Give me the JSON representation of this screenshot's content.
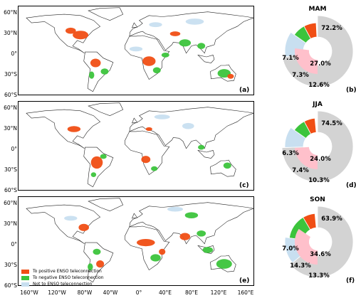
{
  "latitude_ticks": [
    "60°N",
    "30°N",
    "0°",
    "30°S",
    "60°S"
  ],
  "longitude_ticks": [
    "160°W",
    "120°W",
    "80°W",
    "40°W",
    "0°",
    "40°E",
    "80°E",
    "120°E",
    "160°E"
  ],
  "panels": [
    {
      "map_letter": "(a)",
      "pie_letter": "(b)",
      "season": "MAM",
      "pie": {
        "outer": "72.2%",
        "inner": "27.0%",
        "positive": "7.1%",
        "negative": "7.3%",
        "not": "12.6%"
      }
    },
    {
      "map_letter": "(c)",
      "pie_letter": "(d)",
      "season": "JJA",
      "pie": {
        "outer": "74.5%",
        "inner": "24.0%",
        "positive": "6.3%",
        "negative": "7.4%",
        "not": "10.3%"
      }
    },
    {
      "map_letter": "(e)",
      "pie_letter": "(f)",
      "season": "SON",
      "pie": {
        "outer": "63.9%",
        "inner": "34.6%",
        "positive": "7.0%",
        "negative": "14.3%",
        "not": "13.3%"
      }
    }
  ],
  "legend": [
    {
      "label": "To positive ENSO teleconnection",
      "color": "#f04e14"
    },
    {
      "label": "To negative ENSO teleconnection",
      "color": "#3cc43c"
    },
    {
      "label": "Not to ENSO teleconnection",
      "color": "#c8dff0"
    }
  ],
  "colors": {
    "outer_ring": "#d3d3d3",
    "inner_ring": "#ffc0cb",
    "positive": "#f04e14",
    "negative": "#3cc43c",
    "not": "#c8dff0"
  }
}
